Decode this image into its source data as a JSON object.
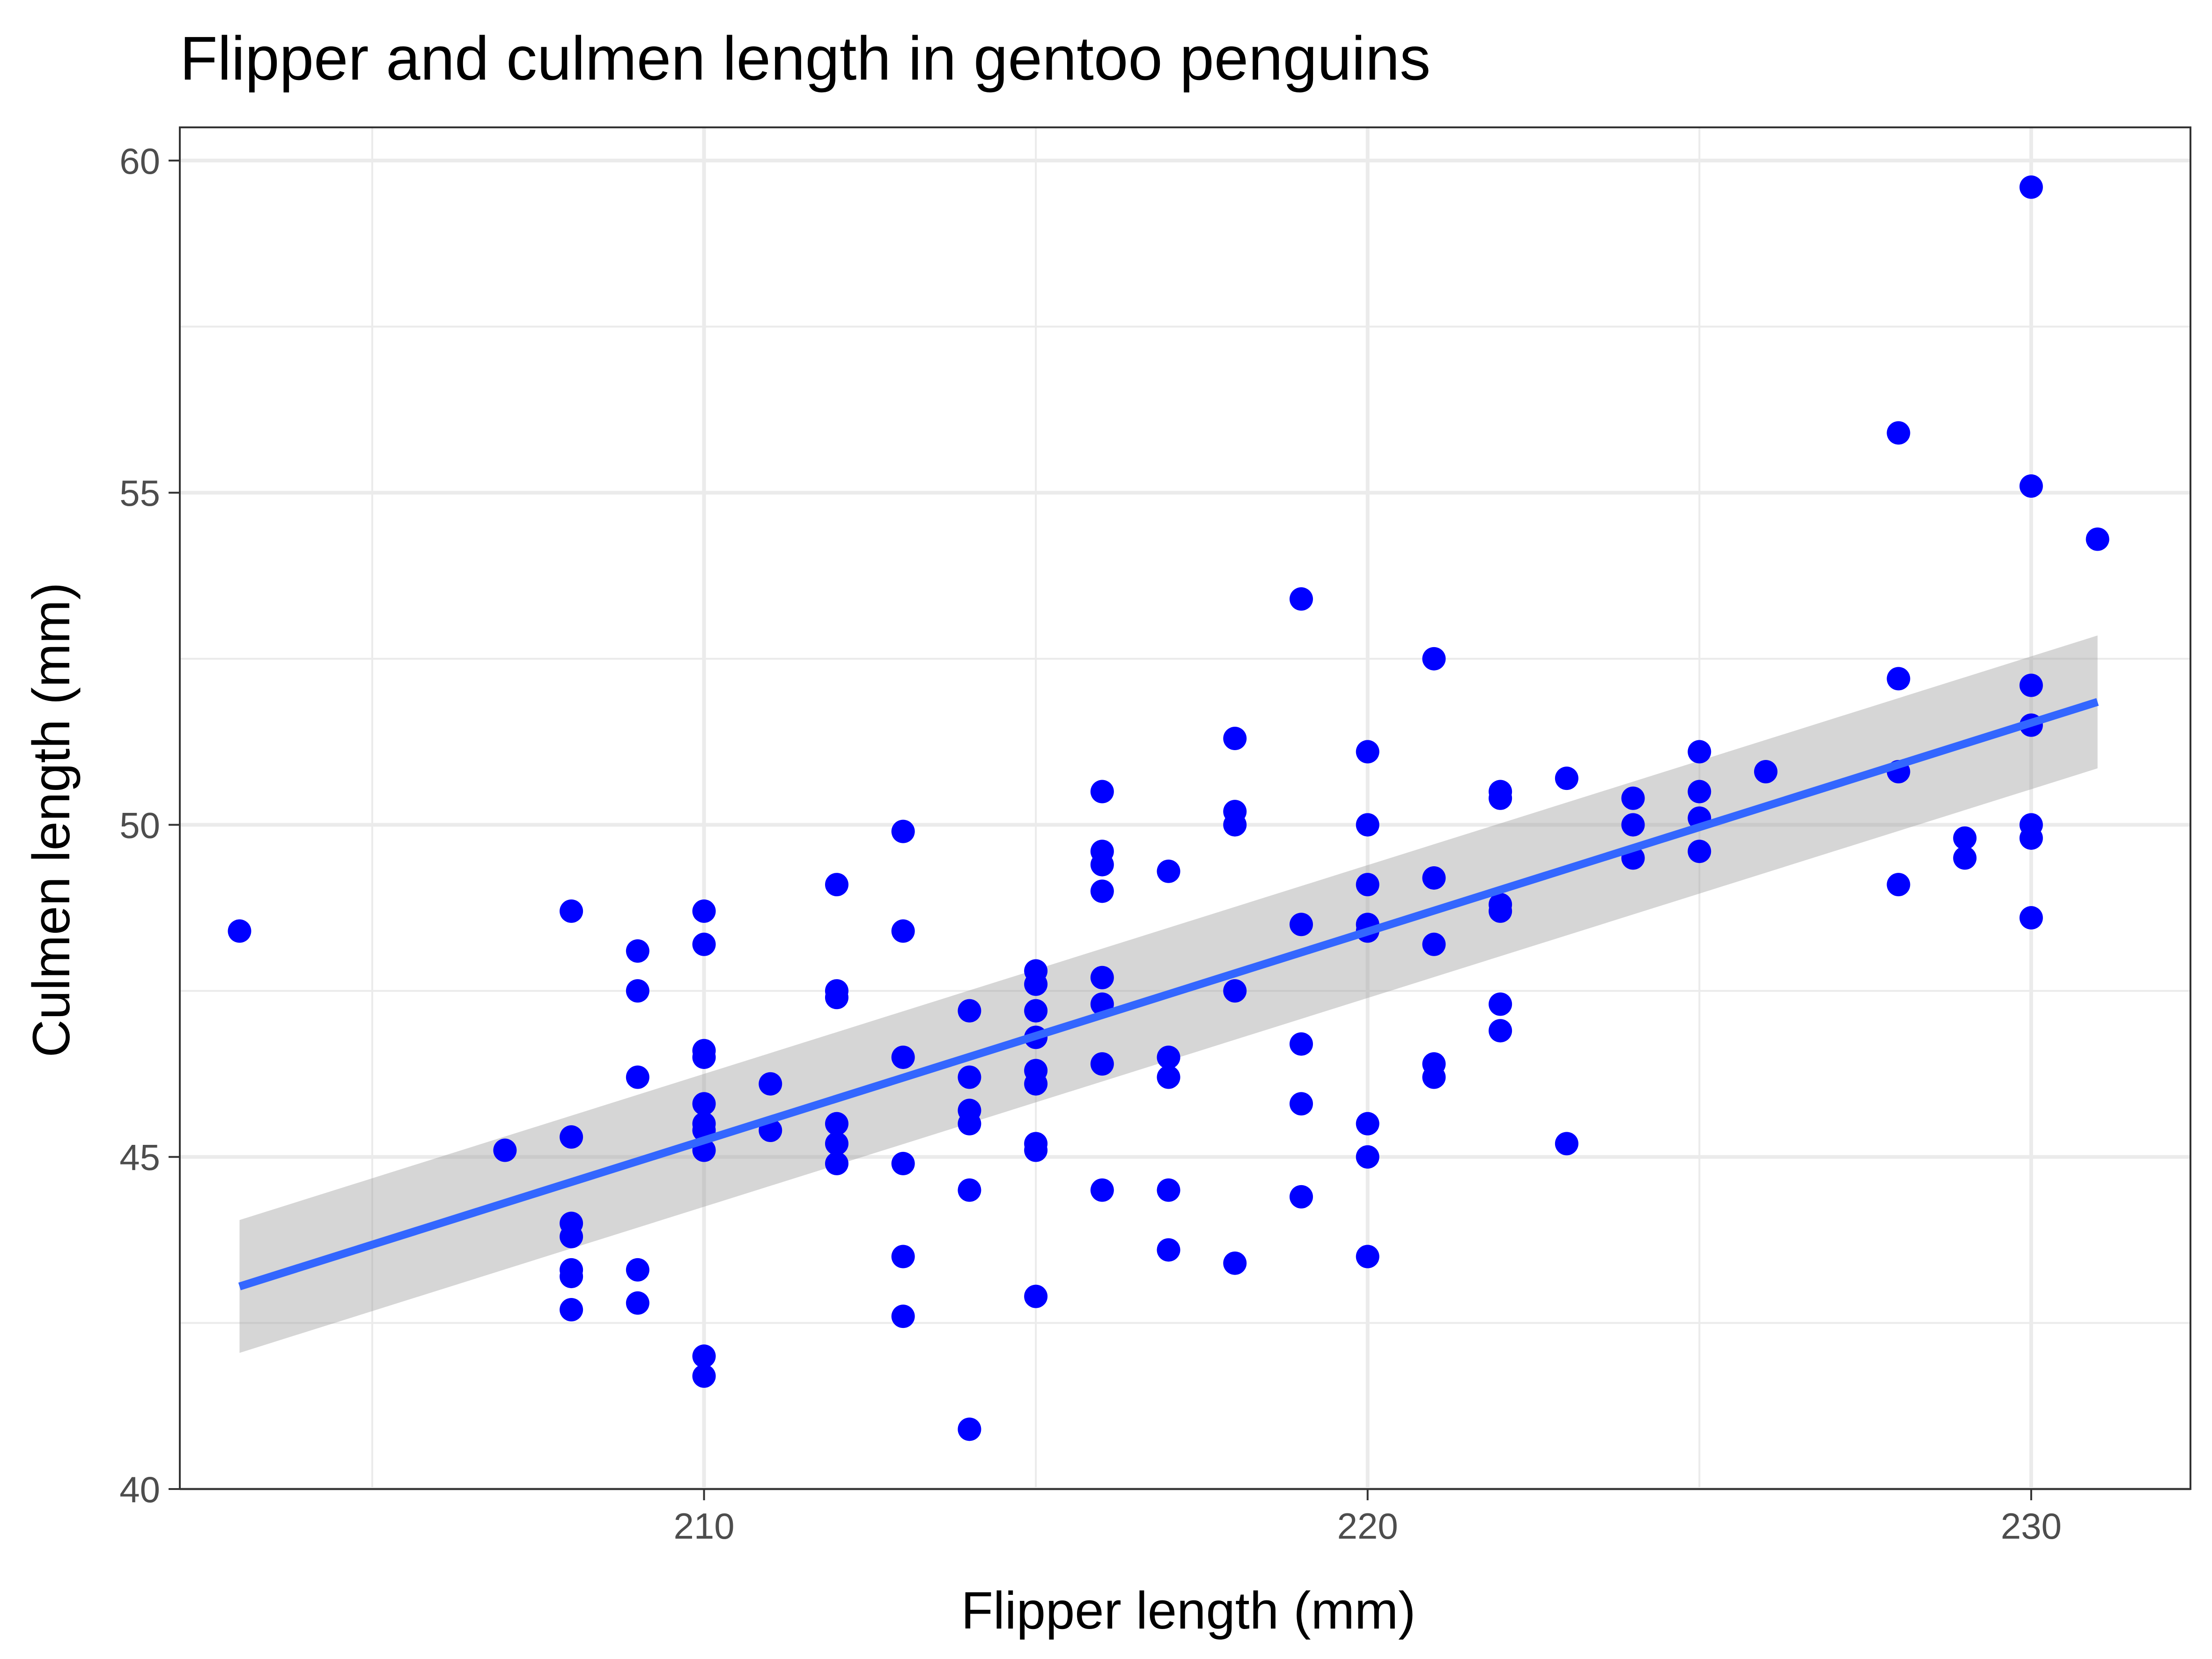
{
  "chart_data": {
    "type": "scatter",
    "title": "Flipper and culmen length in gentoo penguins",
    "xlabel": "Flipper length (mm)",
    "ylabel": "Culmen length (mm)",
    "xlim": [
      202.1,
      232.4
    ],
    "ylim": [
      40,
      60.5
    ],
    "x_ticks": [
      210,
      220,
      230
    ],
    "y_ticks": [
      40,
      45,
      50,
      55,
      60
    ],
    "grid": true,
    "legend": "none",
    "point_color": "#0000ff",
    "fit_color": "#3366ff",
    "band_color": "#999999",
    "series": [
      {
        "points": [
          [
            203,
            48.4
          ],
          [
            207,
            45.1
          ],
          [
            208,
            48.7
          ],
          [
            208,
            45.3
          ],
          [
            208,
            44.0
          ],
          [
            208,
            43.8
          ],
          [
            208,
            43.3
          ],
          [
            208,
            43.2
          ],
          [
            208,
            42.7
          ],
          [
            209,
            48.1
          ],
          [
            209,
            47.5
          ],
          [
            209,
            46.2
          ],
          [
            209,
            43.3
          ],
          [
            209,
            42.8
          ],
          [
            210,
            48.7
          ],
          [
            210,
            48.2
          ],
          [
            210,
            46.6
          ],
          [
            210,
            46.5
          ],
          [
            210,
            45.8
          ],
          [
            210,
            45.5
          ],
          [
            210,
            45.4
          ],
          [
            210,
            45.1
          ],
          [
            210,
            42.0
          ],
          [
            210,
            41.7
          ],
          [
            211,
            46.1
          ],
          [
            211,
            45.4
          ],
          [
            212,
            49.1
          ],
          [
            212,
            47.5
          ],
          [
            212,
            47.4
          ],
          [
            212,
            45.5
          ],
          [
            212,
            45.2
          ],
          [
            212,
            44.9
          ],
          [
            213,
            49.9
          ],
          [
            213,
            48.4
          ],
          [
            213,
            46.5
          ],
          [
            213,
            44.9
          ],
          [
            213,
            43.5
          ],
          [
            213,
            42.6
          ],
          [
            214,
            47.2
          ],
          [
            214,
            46.2
          ],
          [
            214,
            45.7
          ],
          [
            214,
            45.5
          ],
          [
            214,
            44.5
          ],
          [
            214,
            40.9
          ],
          [
            215,
            47.8
          ],
          [
            215,
            47.6
          ],
          [
            215,
            47.2
          ],
          [
            215,
            46.8
          ],
          [
            215,
            46.3
          ],
          [
            215,
            46.1
          ],
          [
            215,
            45.2
          ],
          [
            215,
            45.1
          ],
          [
            215,
            42.9
          ],
          [
            216,
            50.5
          ],
          [
            216,
            49.6
          ],
          [
            216,
            49.4
          ],
          [
            216,
            49.0
          ],
          [
            216,
            47.7
          ],
          [
            216,
            47.3
          ],
          [
            216,
            46.4
          ],
          [
            216,
            44.5
          ],
          [
            217,
            49.3
          ],
          [
            217,
            46.5
          ],
          [
            217,
            46.2
          ],
          [
            217,
            44.5
          ],
          [
            217,
            43.6
          ],
          [
            218,
            51.3
          ],
          [
            218,
            50.2
          ],
          [
            218,
            50.0
          ],
          [
            218,
            47.5
          ],
          [
            218,
            43.4
          ],
          [
            219,
            53.4
          ],
          [
            219,
            48.5
          ],
          [
            219,
            46.7
          ],
          [
            219,
            45.8
          ],
          [
            219,
            44.4
          ],
          [
            220,
            51.1
          ],
          [
            220,
            50.0
          ],
          [
            220,
            49.1
          ],
          [
            220,
            48.5
          ],
          [
            220,
            48.4
          ],
          [
            220,
            45.5
          ],
          [
            220,
            45.0
          ],
          [
            220,
            43.5
          ],
          [
            221,
            52.5
          ],
          [
            221,
            49.2
          ],
          [
            221,
            48.2
          ],
          [
            221,
            46.4
          ],
          [
            221,
            46.2
          ],
          [
            222,
            50.5
          ],
          [
            222,
            50.4
          ],
          [
            222,
            48.8
          ],
          [
            222,
            48.7
          ],
          [
            222,
            47.3
          ],
          [
            222,
            46.9
          ],
          [
            223,
            50.7
          ],
          [
            223,
            45.2
          ],
          [
            224,
            50.4
          ],
          [
            224,
            50.0
          ],
          [
            224,
            49.5
          ],
          [
            225,
            51.1
          ],
          [
            225,
            50.5
          ],
          [
            225,
            50.1
          ],
          [
            225,
            49.6
          ],
          [
            226,
            50.8
          ],
          [
            228,
            55.9
          ],
          [
            228,
            52.2
          ],
          [
            228,
            50.8
          ],
          [
            228,
            49.1
          ],
          [
            229,
            49.8
          ],
          [
            229,
            49.5
          ],
          [
            230,
            59.6
          ],
          [
            230,
            55.1
          ],
          [
            230,
            52.1
          ],
          [
            230,
            51.5
          ],
          [
            230,
            50.0
          ],
          [
            230,
            49.8
          ],
          [
            230,
            48.6
          ],
          [
            231,
            54.3
          ]
        ]
      }
    ],
    "fit": {
      "x": [
        203,
        231
      ],
      "y": [
        43.05,
        51.85
      ],
      "lower": [
        42.05,
        50.85
      ],
      "upper": [
        44.05,
        52.85
      ]
    }
  }
}
